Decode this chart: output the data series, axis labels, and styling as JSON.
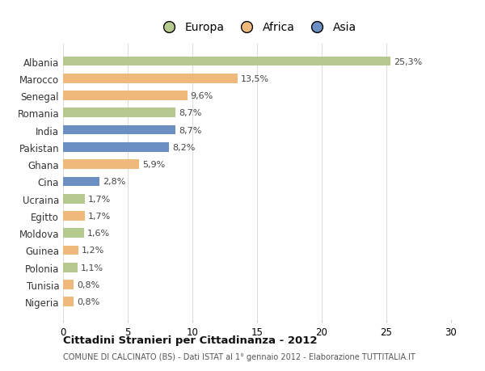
{
  "countries": [
    "Albania",
    "Marocco",
    "Senegal",
    "Romania",
    "India",
    "Pakistan",
    "Ghana",
    "Cina",
    "Ucraina",
    "Egitto",
    "Moldova",
    "Guinea",
    "Polonia",
    "Tunisia",
    "Nigeria"
  ],
  "values": [
    25.3,
    13.5,
    9.6,
    8.7,
    8.7,
    8.2,
    5.9,
    2.8,
    1.7,
    1.7,
    1.6,
    1.2,
    1.1,
    0.8,
    0.8
  ],
  "labels": [
    "25,3%",
    "13,5%",
    "9,6%",
    "8,7%",
    "8,7%",
    "8,2%",
    "5,9%",
    "2,8%",
    "1,7%",
    "1,7%",
    "1,6%",
    "1,2%",
    "1,1%",
    "0,8%",
    "0,8%"
  ],
  "continents": [
    "Europa",
    "Africa",
    "Africa",
    "Europa",
    "Asia",
    "Asia",
    "Africa",
    "Asia",
    "Europa",
    "Africa",
    "Europa",
    "Africa",
    "Europa",
    "Africa",
    "Africa"
  ],
  "colors": {
    "Europa": "#b5c98e",
    "Africa": "#f0b97c",
    "Asia": "#6b8fc2"
  },
  "xlim": [
    0,
    30
  ],
  "xticks": [
    0,
    5,
    10,
    15,
    20,
    25,
    30
  ],
  "title": "Cittadini Stranieri per Cittadinanza - 2012",
  "subtitle": "COMUNE DI CALCINATO (BS) - Dati ISTAT al 1° gennaio 2012 - Elaborazione TUTTITALIA.IT",
  "bg_color": "#ffffff",
  "grid_color": "#dddddd",
  "bar_height": 0.55,
  "figsize": [
    6.0,
    4.6
  ],
  "dpi": 100
}
